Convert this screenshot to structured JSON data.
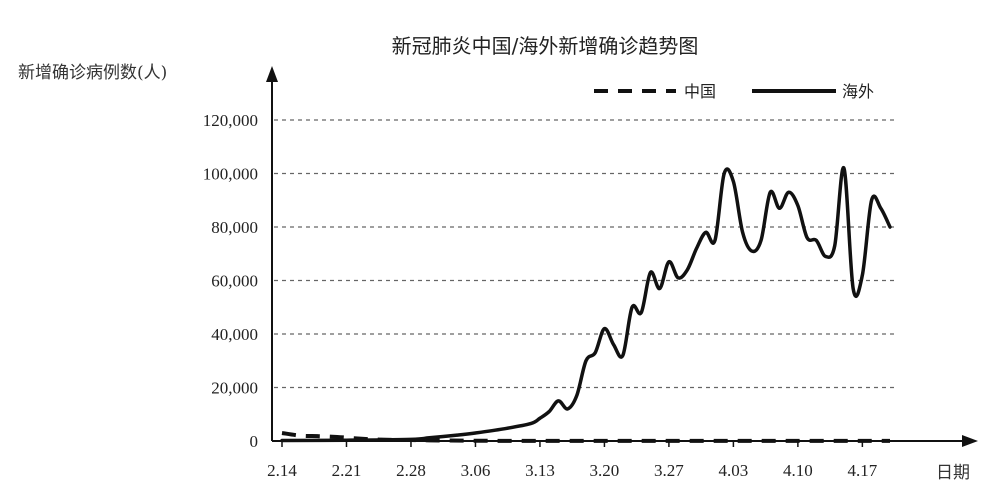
{
  "chart_data": {
    "type": "line",
    "title": "新冠肺炎中国/海外新增确诊趋势图",
    "ylabel": "新增确诊病例数(人)",
    "xlabel": "日期",
    "ylim": [
      0,
      120000
    ],
    "yticks": [
      0,
      20000,
      40000,
      60000,
      80000,
      100000,
      120000
    ],
    "ytick_labels": [
      "0",
      "20,000",
      "40,000",
      "60,000",
      "80,000",
      "100,000",
      "120,000"
    ],
    "x_ticks": [
      "2.14",
      "2.21",
      "2.28",
      "3.06",
      "3.13",
      "3.20",
      "3.27",
      "4.03",
      "4.10",
      "4.17"
    ],
    "grid": true,
    "legend_position": "top-right",
    "series": [
      {
        "name": "中国",
        "style": "dashed",
        "color": "#111111",
        "x": [
          "2.14",
          "2.16",
          "2.18",
          "2.20",
          "2.22",
          "2.24",
          "2.26",
          "2.28",
          "3.01",
          "3.06",
          "3.13",
          "3.20",
          "3.27",
          "4.03",
          "4.10",
          "4.17",
          "4.20"
        ],
        "values": [
          3000,
          2000,
          1800,
          1500,
          1000,
          600,
          400,
          350,
          250,
          100,
          40,
          50,
          50,
          40,
          50,
          40,
          30
        ]
      },
      {
        "name": "海外",
        "style": "solid",
        "color": "#111111",
        "x": [
          "2.14",
          "2.21",
          "2.28",
          "3.01",
          "3.04",
          "3.06",
          "3.09",
          "3.12",
          "3.13",
          "3.14",
          "3.15",
          "3.16",
          "3.17",
          "3.18",
          "3.19",
          "3.20",
          "3.21",
          "3.22",
          "3.23",
          "3.24",
          "3.25",
          "3.26",
          "3.27",
          "3.28",
          "3.29",
          "3.30",
          "3.31",
          "4.01",
          "4.02",
          "4.03",
          "4.04",
          "4.05",
          "4.06",
          "4.07",
          "4.08",
          "4.09",
          "4.10",
          "4.11",
          "4.12",
          "4.13",
          "4.14",
          "4.15",
          "4.16",
          "4.17",
          "4.18",
          "4.19",
          "4.20"
        ],
        "values": [
          200,
          300,
          600,
          1200,
          2200,
          3000,
          4500,
          6500,
          8500,
          11000,
          15000,
          12000,
          17000,
          30000,
          33000,
          42000,
          36000,
          32000,
          50000,
          48000,
          63000,
          57000,
          67000,
          61000,
          64000,
          72000,
          78000,
          75000,
          100000,
          97000,
          78000,
          71000,
          75000,
          93000,
          87000,
          93000,
          88000,
          76000,
          75000,
          69000,
          73000,
          102000,
          57000,
          62000,
          90000,
          87000,
          80000
        ]
      }
    ]
  }
}
